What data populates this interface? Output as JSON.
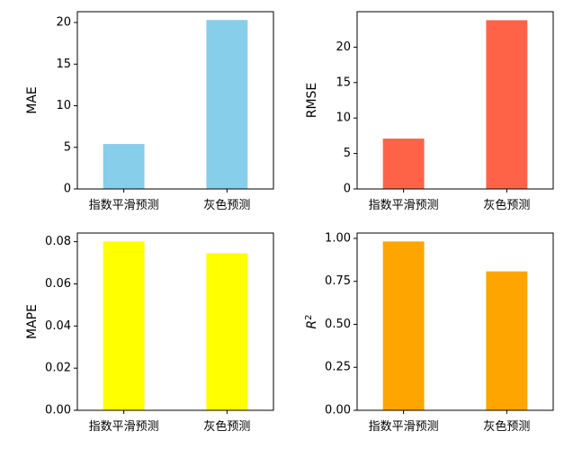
{
  "chart_data": [
    {
      "type": "bar",
      "categories": [
        "指数平滑预测",
        "灰色预测"
      ],
      "values": [
        5.4,
        20.3
      ],
      "ylabel": "MAE",
      "ylim": [
        0,
        21.3
      ],
      "yticks": [
        0,
        5,
        10,
        15,
        20
      ],
      "ytick_labels": [
        "0",
        "5",
        "10",
        "15",
        "20"
      ],
      "color": "#87CEEB"
    },
    {
      "type": "bar",
      "categories": [
        "指数平滑预测",
        "灰色预测"
      ],
      "values": [
        7.1,
        23.8
      ],
      "ylabel": "RMSE",
      "ylim": [
        0,
        25.0
      ],
      "yticks": [
        0,
        5,
        10,
        15,
        20
      ],
      "ytick_labels": [
        "0",
        "5",
        "10",
        "15",
        "20"
      ],
      "color": "#FF6347"
    },
    {
      "type": "bar",
      "categories": [
        "指数平滑预测",
        "灰色预测"
      ],
      "values": [
        0.0801,
        0.0745
      ],
      "ylabel": "MAPE",
      "ylim": [
        0,
        0.0841
      ],
      "yticks": [
        0,
        0.02,
        0.04,
        0.06,
        0.08
      ],
      "ytick_labels": [
        "0.00",
        "0.02",
        "0.04",
        "0.06",
        "0.08"
      ],
      "color": "#FFFF00"
    },
    {
      "type": "bar",
      "categories": [
        "指数平滑预测",
        "灰色预测"
      ],
      "values": [
        0.982,
        0.808
      ],
      "ylabel": "R",
      "ylabel_sup": "2",
      "ylim": [
        0,
        1.031
      ],
      "yticks": [
        0,
        0.25,
        0.5,
        0.75,
        1.0
      ],
      "ytick_labels": [
        "0.00",
        "0.25",
        "0.50",
        "0.75",
        "1.00"
      ],
      "color": "#FFA500"
    }
  ]
}
